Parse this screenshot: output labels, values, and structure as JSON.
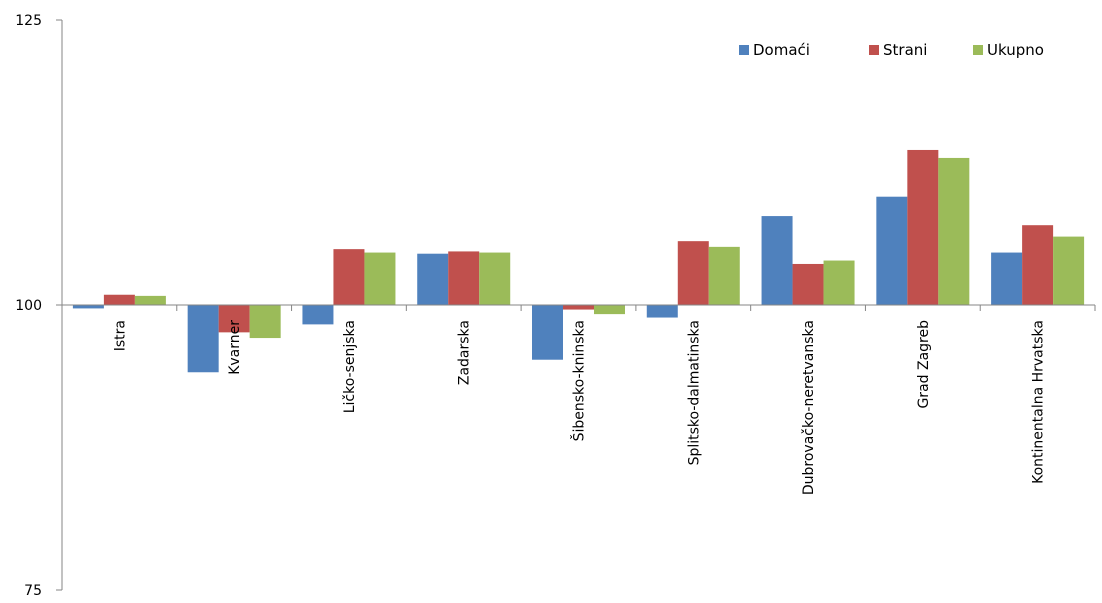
{
  "chart_data": {
    "type": "bar",
    "title": "",
    "xlabel": "",
    "ylabel": "",
    "ylim": [
      75,
      125
    ],
    "yticks": [
      75,
      100,
      125
    ],
    "baseline": 100,
    "grid": false,
    "legend_position": "top-right",
    "categories": [
      "Istra",
      "Kvarner",
      "Ličko-senjska",
      "Zadarska",
      "Šibensko-kninska",
      "Splitsko-dalmatinska",
      "Dubrovačko-neretvanska",
      "Grad Zagreb",
      "Kontinentalna Hrvatska"
    ],
    "series": [
      {
        "name": "Domaći",
        "color": "#4f81bd",
        "values": [
          99.7,
          94.1,
          98.3,
          104.5,
          95.2,
          98.9,
          107.8,
          109.5,
          104.6
        ]
      },
      {
        "name": "Strani",
        "color": "#c0504d",
        "values": [
          100.9,
          97.6,
          104.9,
          104.7,
          99.6,
          105.6,
          103.6,
          113.6,
          107.0
        ]
      },
      {
        "name": "Ukupno",
        "color": "#9bbb59",
        "values": [
          100.8,
          97.1,
          104.6,
          104.6,
          99.2,
          105.1,
          103.9,
          112.9,
          106.0
        ]
      }
    ]
  }
}
